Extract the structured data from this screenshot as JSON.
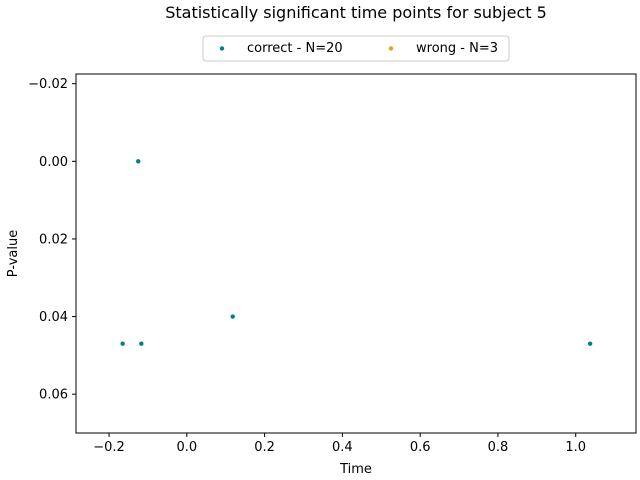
{
  "chart_data": {
    "type": "scatter",
    "title": "Statistically significant time points for subject 5",
    "xlabel": "Time",
    "ylabel": "P-value",
    "xlim": [
      -0.285,
      1.155
    ],
    "ylim": [
      0.07,
      -0.0225
    ],
    "y_inverted": true,
    "xticks": [
      -0.2,
      0.0,
      0.2,
      0.4,
      0.6,
      0.8,
      1.0
    ],
    "xtick_labels": [
      "−0.2",
      "0.0",
      "0.2",
      "0.4",
      "0.6",
      "0.8",
      "1.0"
    ],
    "yticks": [
      -0.02,
      0.0,
      0.02,
      0.04,
      0.06
    ],
    "ytick_labels": [
      "−0.02",
      "0.00",
      "0.02",
      "0.04",
      "0.06"
    ],
    "grid": false,
    "legend_position": "top-center",
    "series": [
      {
        "name": "correct - N=20",
        "color": "#008080",
        "points": [
          {
            "x": -0.125,
            "y": 0.0
          },
          {
            "x": -0.165,
            "y": 0.047
          },
          {
            "x": -0.117,
            "y": 0.047
          },
          {
            "x": 0.118,
            "y": 0.04
          },
          {
            "x": 1.037,
            "y": 0.047
          }
        ]
      },
      {
        "name": "wrong - N=3",
        "color": "#DAA520",
        "points": []
      }
    ]
  }
}
